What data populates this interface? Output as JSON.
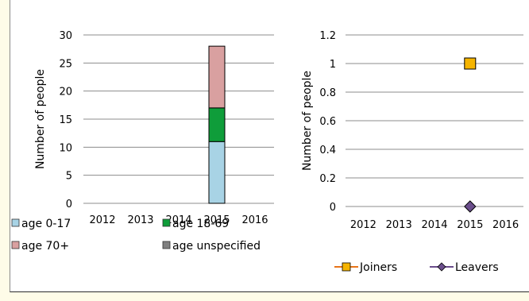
{
  "chart_data": [
    {
      "type": "bar",
      "stacked": true,
      "categories": [
        "2012",
        "2013",
        "2014",
        "2015",
        "2016"
      ],
      "series": [
        {
          "name": "age 0-17",
          "values": [
            0,
            0,
            0,
            11,
            0
          ],
          "color": "#a8d3e5"
        },
        {
          "name": "age 18-69",
          "values": [
            0,
            0,
            0,
            6,
            0
          ],
          "color": "#0f9d3a"
        },
        {
          "name": "age 70+",
          "values": [
            0,
            0,
            0,
            11,
            0
          ],
          "color": "#d9a0a0"
        },
        {
          "name": "age unspecified",
          "values": [
            0,
            0,
            0,
            0,
            0
          ],
          "color": "#7f7f7f"
        }
      ],
      "ylabel": "Number of people",
      "ylim": [
        0,
        30
      ],
      "yticks": [
        0,
        5,
        10,
        15,
        20,
        25,
        30
      ],
      "grid": true,
      "legend_position": "bottom"
    },
    {
      "type": "line",
      "categories": [
        "2012",
        "2013",
        "2014",
        "2015",
        "2016"
      ],
      "series": [
        {
          "name": "Joiners",
          "values": [
            null,
            null,
            null,
            1,
            null
          ],
          "color": "#f5b400",
          "line_color": "#e8741a",
          "marker": "square"
        },
        {
          "name": "Leavers",
          "values": [
            null,
            null,
            null,
            0,
            null
          ],
          "color": "#6b4e8c",
          "line_color": "#6b4e8c",
          "marker": "diamond"
        }
      ],
      "ylabel": "Number of people",
      "ylim": [
        0,
        1.2
      ],
      "yticks": [
        "0",
        "0.2",
        "0.4",
        "0.6",
        "0.8",
        "1",
        "1.2"
      ],
      "grid": true,
      "legend_position": "bottom"
    }
  ]
}
